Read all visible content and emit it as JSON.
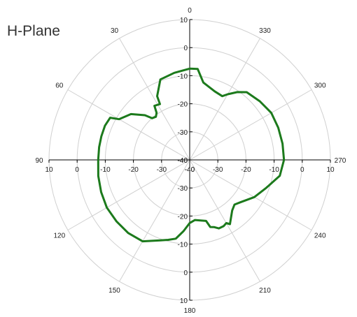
{
  "chart_data": {
    "type": "polar-line",
    "title": "H-Plane",
    "angle_unit": "degrees",
    "angle_zero": "top",
    "angle_direction": "counterclockwise",
    "angle_ticks": [
      0,
      30,
      60,
      90,
      120,
      150,
      180,
      210,
      240,
      270,
      300,
      330
    ],
    "radial_range": [
      -40,
      10
    ],
    "radial_ticks": [
      10,
      0,
      -10,
      -20,
      -30,
      -40
    ],
    "grid": true,
    "colors": {
      "series": "#1c7a1c",
      "grid": "#d0d0d0",
      "axis": "#000000"
    },
    "series": [
      {
        "angle": [
          0,
          10,
          20,
          27,
          28,
          33,
          35,
          38,
          42,
          45,
          52,
          60,
          62,
          68,
          75,
          82,
          90,
          100,
          110,
          120,
          130,
          140,
          150,
          160,
          165,
          170,
          175,
          180,
          185,
          195,
          197,
          200,
          203,
          207,
          210,
          212,
          215,
          220,
          225,
          230,
          240,
          250,
          260,
          270,
          280,
          290,
          300,
          310,
          320,
          325,
          330,
          333,
          340,
          350,
          355,
          360
        ],
        "value": [
          -7.5,
          -8.5,
          -9.5,
          -14.5,
          -17.5,
          -17.0,
          -19.5,
          -20.5,
          -20.0,
          -17.5,
          -13.5,
          -11.0,
          -8.0,
          -7.5,
          -7.5,
          -7.5,
          -7.5,
          -7.0,
          -6.5,
          -6.0,
          -6.0,
          -6.0,
          -6.5,
          -9.5,
          -10.5,
          -11.5,
          -14.5,
          -17.5,
          -18.5,
          -17.5,
          -15.0,
          -14.5,
          -13.5,
          -13.5,
          -14.0,
          -13.0,
          -14.5,
          -16.5,
          -17.5,
          -16.5,
          -13.5,
          -11.0,
          -7.5,
          -6.5,
          -6.5,
          -6.5,
          -6.5,
          -7.5,
          -8.5,
          -10.5,
          -13.0,
          -14.5,
          -14.0,
          -12.0,
          -7.5,
          -7.5
        ]
      }
    ]
  }
}
